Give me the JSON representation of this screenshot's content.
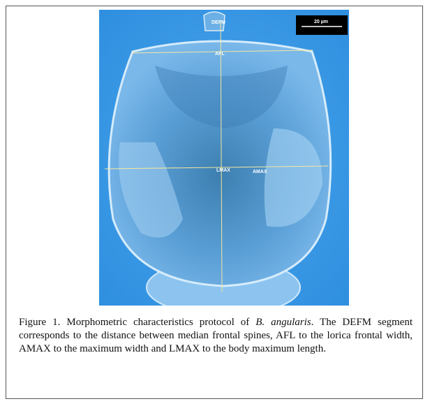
{
  "figure": {
    "image_labels": {
      "defm": "DEFM",
      "afl": "AFL",
      "lmax": "LMAX",
      "amax": "AMAX",
      "scale_bar": "20 µm"
    },
    "caption": {
      "lead": "Figure 1. Morphometric characteristics protocol of ",
      "species": "B. angularis",
      "rest": ". The DEFM segment corresponds to the distance between median frontal spines, AFL to the lorica frontal width, AMAX to the maximum width and LMAX to the body maximum length."
    }
  }
}
